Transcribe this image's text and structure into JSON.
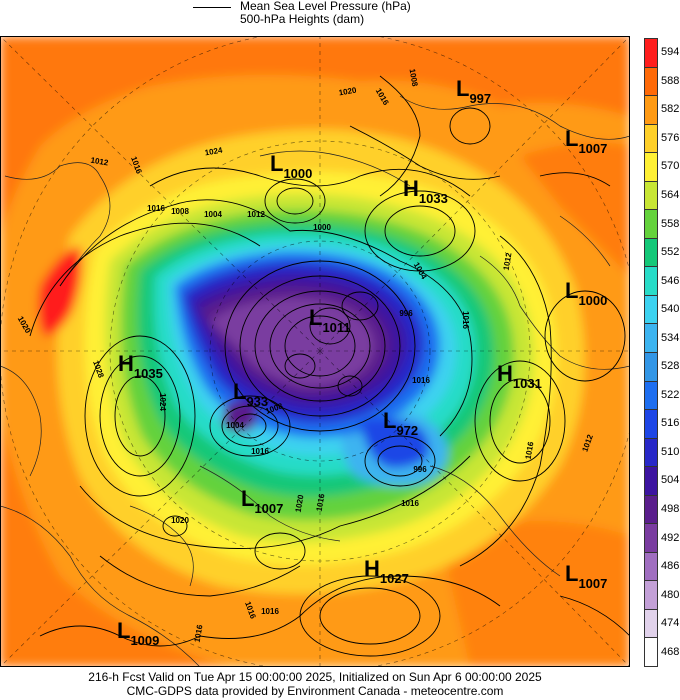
{
  "legend": {
    "pressure_label": "Mean Sea Level Pressure (hPa)",
    "heights_label": "500-hPa Heights (dam)"
  },
  "colorbar": {
    "labels": [
      "594",
      "588",
      "582",
      "576",
      "570",
      "564",
      "558",
      "552",
      "546",
      "540",
      "534",
      "528",
      "522",
      "516",
      "510",
      "504",
      "498",
      "492",
      "486",
      "480",
      "474",
      "468"
    ],
    "colors": [
      "#ff1e1e",
      "#ff6a08",
      "#ff9a14",
      "#ffd02a",
      "#fff035",
      "#c8e635",
      "#64d23c",
      "#14c878",
      "#28dcc8",
      "#3cd2f0",
      "#3cb4f0",
      "#3296e6",
      "#1e6ef0",
      "#1e46e6",
      "#2828c8",
      "#3c14a0",
      "#5a1e8c",
      "#7a3ca0",
      "#a06ec0",
      "#c3a0d7",
      "#e1d2eb",
      "#ffffff"
    ]
  },
  "systems": [
    {
      "type": "L",
      "value": "997"
    },
    {
      "type": "L",
      "value": "1007"
    },
    {
      "type": "L",
      "value": "1000"
    },
    {
      "type": "H",
      "value": "1033"
    },
    {
      "type": "L",
      "value": "1000"
    },
    {
      "type": "L",
      "value": "1011"
    },
    {
      "type": "H",
      "value": "1035"
    },
    {
      "type": "L",
      "value": "933"
    },
    {
      "type": "L",
      "value": "972"
    },
    {
      "type": "H",
      "value": "1031"
    },
    {
      "type": "L",
      "value": "1007"
    },
    {
      "type": "H",
      "value": "1027"
    },
    {
      "type": "L",
      "value": "1007"
    },
    {
      "type": "L",
      "value": "1009"
    }
  ],
  "contour_labels": [
    "1020",
    "1016",
    "1008",
    "1012",
    "1024",
    "1016",
    "1008",
    "1004",
    "1012",
    "1000",
    "1016",
    "1012",
    "1004",
    "996",
    "1016",
    "1028",
    "1024",
    "1016",
    "1004",
    "1008",
    "1016",
    "996",
    "1016",
    "1020",
    "1012",
    "1016",
    "1016",
    "1020",
    "1016",
    "1016",
    "1020",
    "1016"
  ],
  "footer": {
    "line1": "216-h Fcst Valid on Tue Apr 15 00:00:00 2025, Initialized on Sun Apr  6 00:00:00 2025",
    "line2": "CMC-GDPS data provided by Environment Canada - meteocentre.com"
  }
}
